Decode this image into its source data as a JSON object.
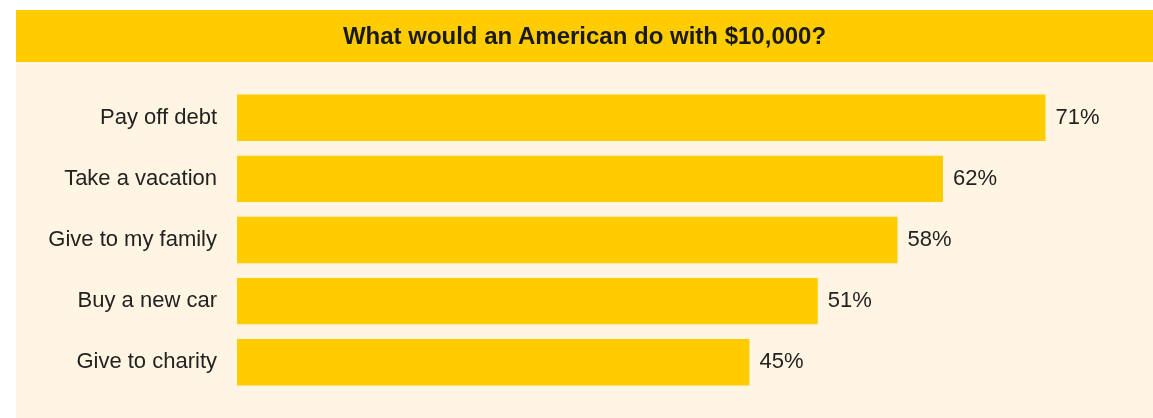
{
  "chart_data": {
    "type": "bar",
    "orientation": "horizontal",
    "title": "What would an American do with $10,000?",
    "categories": [
      "Pay off debt",
      "Take a vacation",
      "Give to my family",
      "Buy a new car",
      "Give to charity"
    ],
    "values": [
      71,
      62,
      58,
      51,
      45
    ],
    "value_labels": [
      "71%",
      "62%",
      "58%",
      "51%",
      "45%"
    ],
    "color": "#ffcc00"
  }
}
